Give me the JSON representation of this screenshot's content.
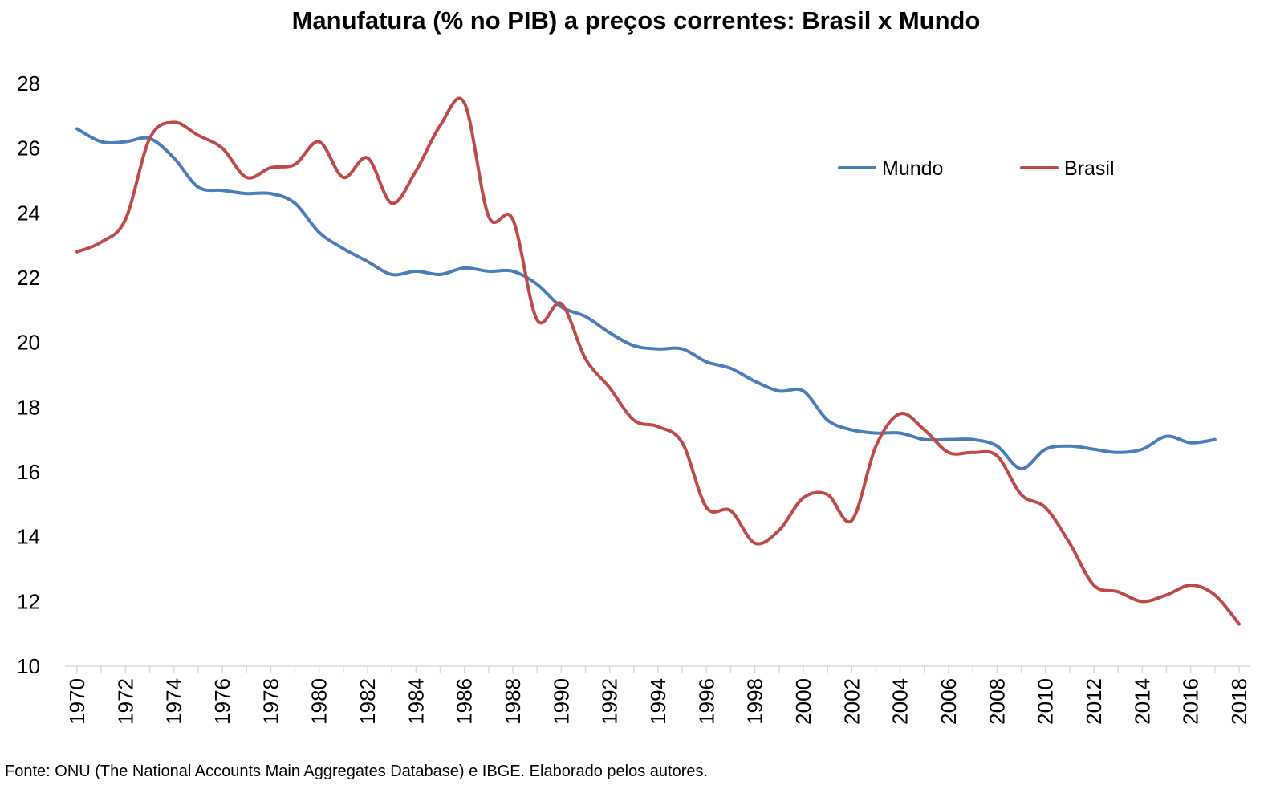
{
  "chart_data": {
    "type": "line",
    "title": "Manufatura (% no PIB) a preços correntes: Brasil x Mundo",
    "xlabel": "",
    "ylabel": "",
    "x": [
      1970,
      1971,
      1972,
      1973,
      1974,
      1975,
      1976,
      1977,
      1978,
      1979,
      1980,
      1981,
      1982,
      1983,
      1984,
      1985,
      1986,
      1987,
      1988,
      1989,
      1990,
      1991,
      1992,
      1993,
      1994,
      1995,
      1996,
      1997,
      1998,
      1999,
      2000,
      2001,
      2002,
      2003,
      2004,
      2005,
      2006,
      2007,
      2008,
      2009,
      2010,
      2011,
      2012,
      2013,
      2014,
      2015,
      2016,
      2017,
      2018
    ],
    "x_tick_labels": [
      "1970",
      "1972",
      "1974",
      "1976",
      "1978",
      "1980",
      "1982",
      "1984",
      "1986",
      "1988",
      "1990",
      "1992",
      "1994",
      "1996",
      "1998",
      "2000",
      "2002",
      "2004",
      "2006",
      "2008",
      "2010",
      "2012",
      "2014",
      "2016",
      "2018"
    ],
    "ylim": [
      10,
      28
    ],
    "y_ticks": [
      10,
      12,
      14,
      16,
      18,
      20,
      22,
      24,
      26,
      28
    ],
    "legend_position": "top-right",
    "grid": false,
    "series": [
      {
        "name": "Mundo",
        "color": "#4a7ebb",
        "values": [
          26.6,
          26.2,
          26.2,
          26.3,
          25.7,
          24.8,
          24.7,
          24.6,
          24.6,
          24.3,
          23.4,
          22.9,
          22.5,
          22.1,
          22.2,
          22.1,
          22.3,
          22.2,
          22.2,
          21.8,
          21.1,
          20.8,
          20.3,
          19.9,
          19.8,
          19.8,
          19.4,
          19.2,
          18.8,
          18.5,
          18.5,
          17.6,
          17.3,
          17.2,
          17.2,
          17.0,
          17.0,
          17.0,
          16.8,
          16.1,
          16.7,
          16.8,
          16.7,
          16.6,
          16.7,
          17.1,
          16.9,
          17.0,
          null
        ]
      },
      {
        "name": "Brasil",
        "color": "#be4b48",
        "values": [
          22.8,
          23.1,
          23.8,
          26.3,
          26.8,
          26.4,
          26.0,
          25.1,
          25.4,
          25.5,
          26.2,
          25.1,
          25.7,
          24.3,
          25.3,
          26.7,
          27.4,
          23.9,
          23.8,
          20.7,
          21.2,
          19.5,
          18.6,
          17.6,
          17.4,
          16.9,
          14.9,
          14.8,
          13.8,
          14.2,
          15.2,
          15.3,
          14.5,
          16.8,
          17.8,
          17.3,
          16.6,
          16.6,
          16.5,
          15.3,
          14.9,
          13.8,
          12.5,
          12.3,
          12.0,
          12.2,
          12.5,
          12.2,
          11.3
        ]
      }
    ]
  },
  "source_note": "Fonte: ONU (The National Accounts Main Aggregates Database) e IBGE. Elaborado pelos autores."
}
